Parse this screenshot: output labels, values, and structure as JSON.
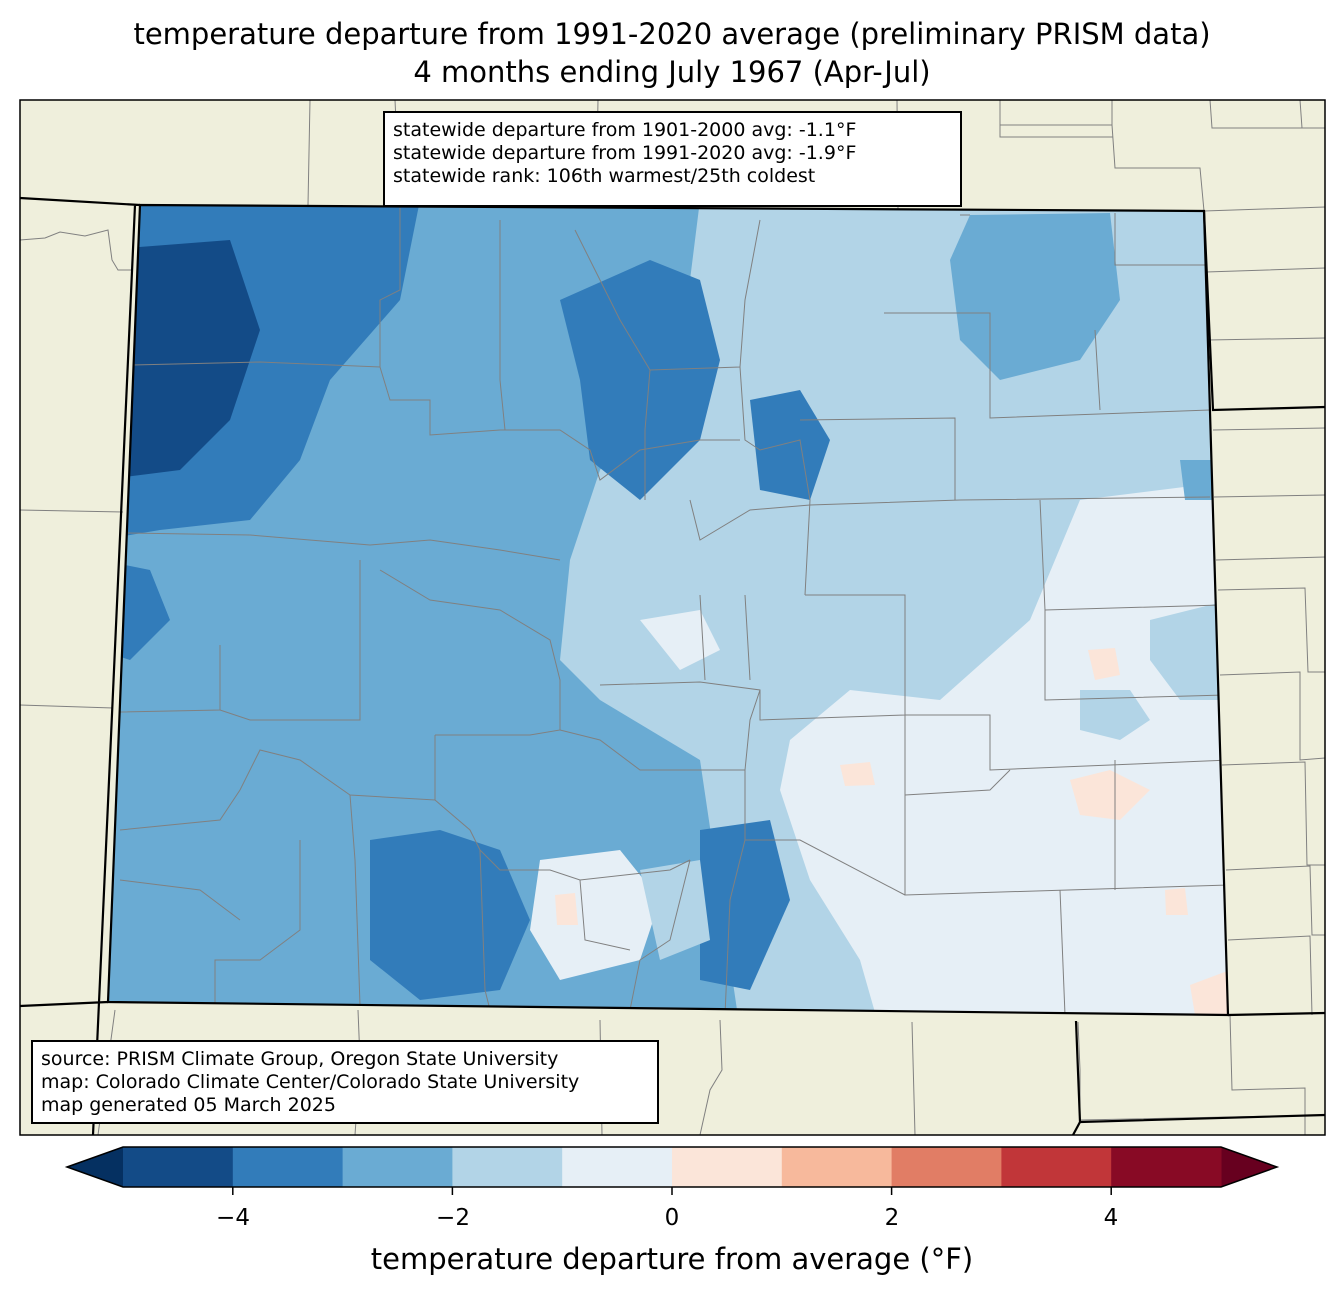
{
  "title": {
    "line1": "temperature departure from 1991-2020 average (preliminary PRISM data)",
    "line2": "4 months ending July 1967 (Apr-Jul)"
  },
  "stats_box": {
    "lines": [
      "statewide departure from 1901-2000 avg: -1.1°F",
      "statewide departure from 1991-2020 avg: -1.9°F",
      "statewide rank: 106th warmest/25th coldest"
    ]
  },
  "source_box": {
    "lines": [
      "source: PRISM Climate Group, Oregon State University",
      "map: Colorado Climate Center/Colorado State University",
      "map generated 05 March 2025"
    ]
  },
  "colorbar": {
    "label": "temperature departure from average (°F)",
    "ticks": [
      "−4",
      "−2",
      "0",
      "2",
      "4"
    ],
    "tick_values": [
      -4,
      -2,
      0,
      2,
      4
    ],
    "range": [
      -5,
      5
    ],
    "bins": [
      {
        "from": -5,
        "to": -4,
        "color": "#134b87"
      },
      {
        "from": -4,
        "to": -3,
        "color": "#327cba"
      },
      {
        "from": -3,
        "to": -2,
        "color": "#6aabd3"
      },
      {
        "from": -2,
        "to": -1,
        "color": "#b2d4e7"
      },
      {
        "from": -1,
        "to": 0,
        "color": "#e6eff6"
      },
      {
        "from": 0,
        "to": 1,
        "color": "#fbe5d9"
      },
      {
        "from": 1,
        "to": 2,
        "color": "#f7b99c"
      },
      {
        "from": 2,
        "to": 3,
        "color": "#e17d65"
      },
      {
        "from": 3,
        "to": 4,
        "color": "#c13639"
      },
      {
        "from": 4,
        "to": 5,
        "color": "#880a25"
      }
    ],
    "extend_min_color": "#053061",
    "extend_max_color": "#67001f"
  },
  "colors": {
    "land": "#efefdc",
    "state_border": "#000000",
    "county_border": "#808080"
  }
}
